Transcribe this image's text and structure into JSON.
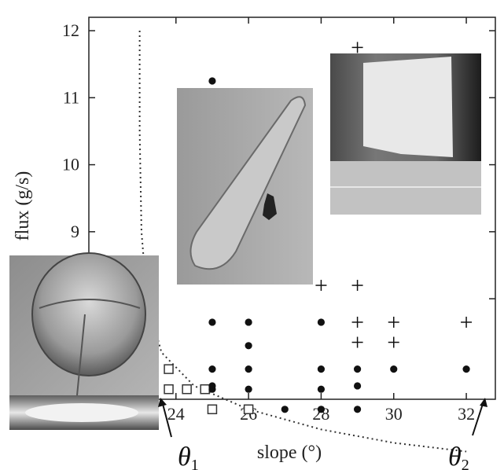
{
  "chart_data": {
    "type": "scatter",
    "xlabel": "slope (°)",
    "ylabel": "flux (g/s)",
    "xlim": [
      21.6,
      32.8
    ],
    "ylim": [
      6.5,
      12.2
    ],
    "xticks": [
      24,
      26,
      28,
      30,
      32
    ],
    "yticks": [
      8,
      9,
      10,
      11,
      12
    ],
    "xtick_labels": [
      "24",
      "26",
      "28",
      "30",
      "32"
    ],
    "ytick_labels": [
      "8",
      "9",
      "10",
      "11",
      "12"
    ],
    "grid": false,
    "annotations": [
      {
        "text": "θ",
        "subscript": "1",
        "x": 23.2
      },
      {
        "text": "θ",
        "subscript": "2",
        "x": 32.0
      }
    ],
    "series": [
      {
        "marker": "open-square",
        "points": [
          [
            21.8,
            8.25
          ],
          [
            22.3,
            8.25
          ],
          [
            22.8,
            8.25
          ],
          [
            22.8,
            7.65
          ],
          [
            23.3,
            7.65
          ],
          [
            22.3,
            7.3
          ],
          [
            22.8,
            7.3
          ],
          [
            22.8,
            6.95
          ],
          [
            23.3,
            6.95
          ],
          [
            23.8,
            6.95
          ],
          [
            22.8,
            6.65
          ],
          [
            23.3,
            6.65
          ],
          [
            23.8,
            6.65
          ],
          [
            24.3,
            6.65
          ],
          [
            24.8,
            6.65
          ],
          [
            25.0,
            6.35
          ],
          [
            26.0,
            6.35
          ]
        ]
      },
      {
        "marker": "filled-circle",
        "points": [
          [
            25.0,
            11.25
          ],
          [
            23.3,
            7.65
          ],
          [
            25.0,
            7.65
          ],
          [
            26.0,
            7.65
          ],
          [
            28.0,
            7.65
          ],
          [
            23.3,
            7.3
          ],
          [
            26.0,
            7.3
          ],
          [
            25.0,
            6.95
          ],
          [
            26.0,
            6.95
          ],
          [
            28.0,
            6.95
          ],
          [
            29.0,
            6.95
          ],
          [
            30.0,
            6.95
          ],
          [
            32.0,
            6.95
          ],
          [
            25.0,
            6.65
          ],
          [
            26.0,
            6.65
          ],
          [
            28.0,
            6.65
          ],
          [
            29.0,
            6.7
          ],
          [
            25.0,
            6.7
          ],
          [
            27.0,
            6.35
          ],
          [
            28.0,
            6.35
          ],
          [
            29.0,
            6.35
          ]
        ]
      },
      {
        "marker": "plus",
        "points": [
          [
            29.0,
            11.75
          ],
          [
            28.0,
            8.2
          ],
          [
            29.0,
            8.2
          ],
          [
            29.0,
            7.65
          ],
          [
            30.0,
            7.65
          ],
          [
            32.0,
            7.65
          ],
          [
            29.0,
            7.35
          ],
          [
            30.0,
            7.35
          ]
        ]
      }
    ],
    "threshold_curve": {
      "style": "dotted",
      "points": [
        [
          23.0,
          12.0
        ],
        [
          23.0,
          10.5
        ],
        [
          23.05,
          9.0
        ],
        [
          23.2,
          8.0
        ],
        [
          23.6,
          7.2
        ],
        [
          24.5,
          6.7
        ],
        [
          26.0,
          6.35
        ],
        [
          28.0,
          6.05
        ],
        [
          30.0,
          5.85
        ],
        [
          32.0,
          5.72
        ]
      ]
    }
  },
  "photos": {
    "left_inset": "photo-liquid-drop",
    "center_inset": "photo-elongated-rivulet",
    "right_inset": "photo-wide-flow"
  }
}
